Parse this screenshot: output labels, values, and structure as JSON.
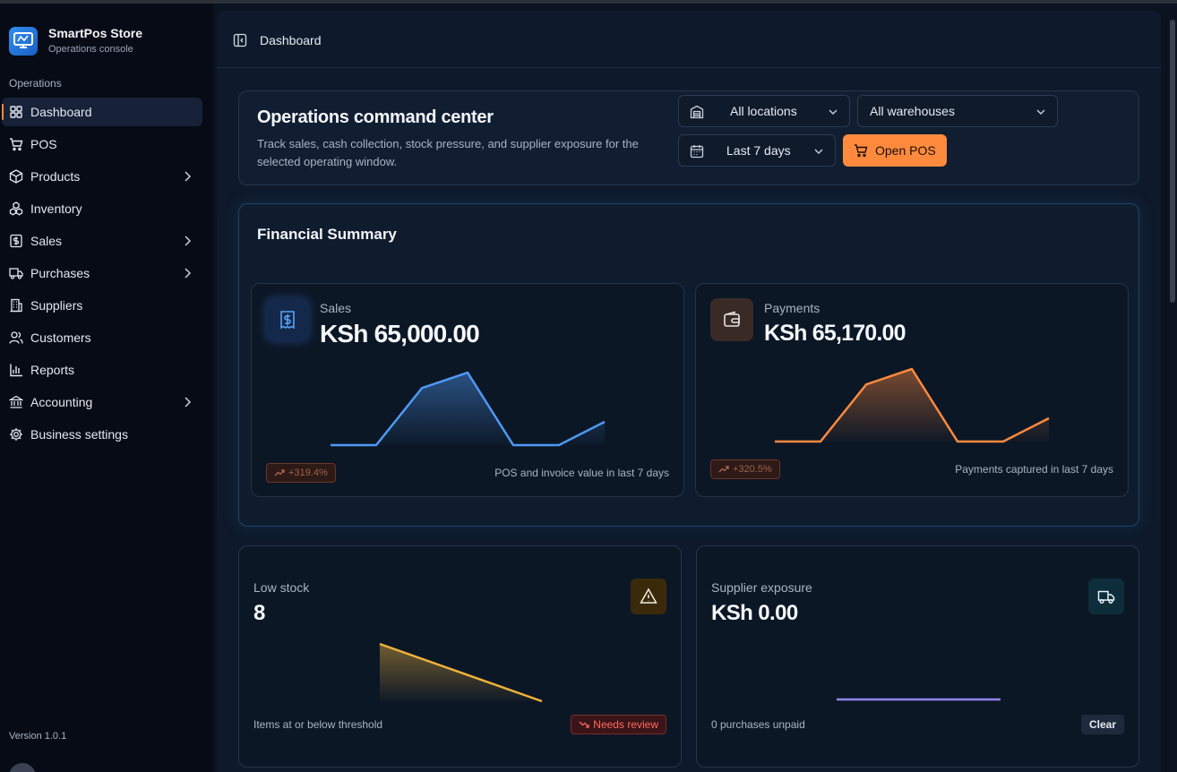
{
  "brand": {
    "title": "SmartPos Store",
    "subtitle": "Operations console"
  },
  "sidebar": {
    "section_label": "Operations",
    "items": [
      {
        "label": "Dashboard",
        "icon": "grid-icon",
        "active": true,
        "has_submenu": false
      },
      {
        "label": "POS",
        "icon": "cart-icon",
        "active": false,
        "has_submenu": false
      },
      {
        "label": "Products",
        "icon": "box-icon",
        "active": false,
        "has_submenu": true
      },
      {
        "label": "Inventory",
        "icon": "boxes-icon",
        "active": false,
        "has_submenu": false
      },
      {
        "label": "Sales",
        "icon": "dollar-receipt-icon",
        "active": false,
        "has_submenu": true
      },
      {
        "label": "Purchases",
        "icon": "truck-icon",
        "active": false,
        "has_submenu": true
      },
      {
        "label": "Suppliers",
        "icon": "building-icon",
        "active": false,
        "has_submenu": false
      },
      {
        "label": "Customers",
        "icon": "users-icon",
        "active": false,
        "has_submenu": false
      },
      {
        "label": "Reports",
        "icon": "bar-chart-icon",
        "active": false,
        "has_submenu": false
      },
      {
        "label": "Accounting",
        "icon": "bank-icon",
        "active": false,
        "has_submenu": true
      },
      {
        "label": "Business settings",
        "icon": "gear-icon",
        "active": false,
        "has_submenu": false
      }
    ],
    "version": "Version 1.0.1"
  },
  "header": {
    "title": "Dashboard"
  },
  "command_center": {
    "title": "Operations command center",
    "description": "Track sales, cash collection, stock pressure, and supplier exposure for the selected operating window.",
    "location_select": "All locations",
    "warehouse_select": "All warehouses",
    "period_select": "Last 7 days",
    "open_pos_label": "Open POS"
  },
  "financial_summary": {
    "title": "Financial Summary",
    "sales": {
      "label": "Sales",
      "value": "KSh 65,000.00",
      "change": "+319.4%",
      "footnote": "POS and invoice value in last 7 days",
      "trend": [
        0,
        0,
        1.1,
        1.4,
        0,
        0,
        0.45
      ],
      "color": "#4f9af5"
    },
    "payments": {
      "label": "Payments",
      "value": "KSh 65,170.00",
      "change": "+320.5%",
      "footnote": "Payments captured in last 7 days",
      "trend": [
        0,
        0,
        1.1,
        1.4,
        0,
        0,
        0.45
      ],
      "color": "#ff8a3d"
    }
  },
  "low_stock": {
    "label": "Low stock",
    "value": "8",
    "footnote": "Items at or below threshold",
    "badge": "Needs review",
    "trend": [
      1,
      0
    ],
    "color": "#f0b23a"
  },
  "supplier_exposure": {
    "label": "Supplier exposure",
    "value": "KSh 0.00",
    "footnote": "0 purchases unpaid",
    "badge": "Clear",
    "trend": [
      0,
      0
    ],
    "color": "#8f86f0"
  }
}
